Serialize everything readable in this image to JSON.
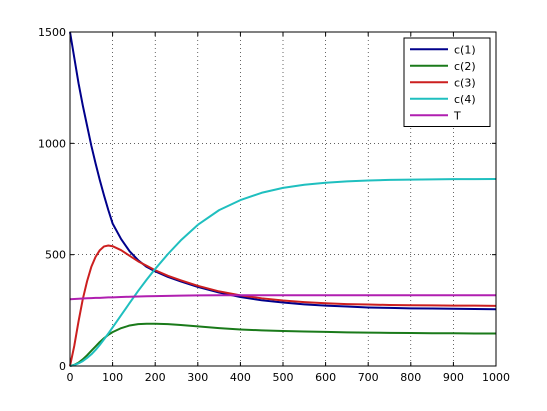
{
  "chart_data": {
    "type": "line",
    "title": "",
    "xlabel": "",
    "ylabel": "",
    "xlim": [
      0,
      1000
    ],
    "ylim": [
      0,
      1500
    ],
    "xticks": [
      0,
      100,
      200,
      300,
      400,
      500,
      600,
      700,
      800,
      900,
      1000
    ],
    "yticks": [
      0,
      500,
      1000,
      1500
    ],
    "grid": true,
    "legend_position": "top-right",
    "x": [
      0,
      10,
      20,
      30,
      40,
      50,
      60,
      70,
      80,
      90,
      100,
      120,
      140,
      160,
      180,
      200,
      230,
      260,
      300,
      350,
      400,
      450,
      500,
      550,
      600,
      650,
      700,
      750,
      800,
      850,
      900,
      950,
      1000
    ],
    "series": [
      {
        "name": "c(1)",
        "color": "#00008b",
        "values": [
          1500,
          1385,
          1270,
          1170,
          1080,
          990,
          910,
          835,
          765,
          700,
          640,
          570,
          515,
          475,
          445,
          425,
          400,
          380,
          355,
          330,
          310,
          295,
          285,
          277,
          271,
          267,
          263,
          261,
          259,
          258,
          257,
          256,
          255
        ]
      },
      {
        "name": "c(2)",
        "color": "#1a7a1a",
        "values": [
          0,
          5,
          15,
          30,
          48,
          68,
          88,
          108,
          125,
          140,
          152,
          170,
          182,
          188,
          190,
          190,
          188,
          184,
          178,
          170,
          164,
          160,
          157,
          155,
          153,
          151,
          150,
          149,
          148,
          147,
          147,
          146,
          146
        ]
      },
      {
        "name": "c(3)",
        "color": "#cc1f1f",
        "values": [
          0,
          90,
          200,
          300,
          380,
          445,
          490,
          520,
          537,
          541,
          538,
          520,
          495,
          470,
          450,
          430,
          405,
          385,
          360,
          335,
          317,
          304,
          294,
          287,
          282,
          278,
          276,
          274,
          273,
          272,
          271,
          271,
          270
        ]
      },
      {
        "name": "c(4)",
        "color": "#1fbfbf",
        "values": [
          0,
          4,
          12,
          22,
          36,
          52,
          72,
          95,
          120,
          146,
          173,
          228,
          283,
          337,
          388,
          436,
          503,
          564,
          634,
          700,
          745,
          778,
          800,
          814,
          823,
          829,
          833,
          836,
          837,
          838,
          839,
          839,
          840
        ]
      },
      {
        "name": "T",
        "color": "#b01fb0",
        "values": [
          300,
          301,
          302,
          303,
          304,
          305,
          306,
          306,
          307,
          308,
          308,
          310,
          311,
          312,
          313,
          314,
          315,
          316,
          317,
          318,
          318,
          318,
          318,
          318,
          318,
          318,
          318,
          318,
          318,
          318,
          318,
          318,
          318
        ]
      }
    ]
  }
}
